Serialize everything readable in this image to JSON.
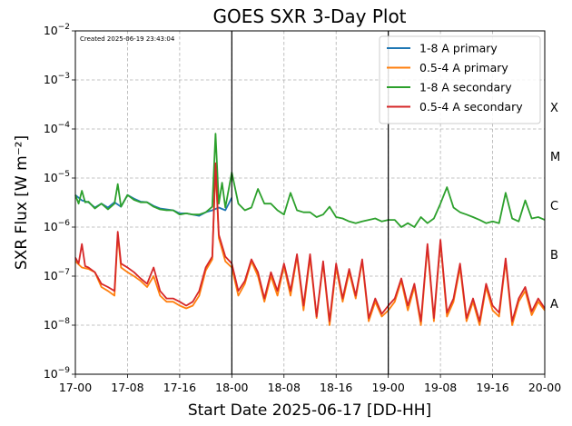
{
  "chart_data": {
    "type": "line",
    "title": "GOES SXR 3-Day Plot",
    "created_text": "Created 2025-06-19 23:43:04",
    "xlabel": "Start Date 2025-06-17 [DD-HH]",
    "ylabel": "SXR Flux [W m⁻²]",
    "y_scale": "log",
    "ylim": [
      1e-09,
      0.01
    ],
    "xlim_hours": [
      0,
      72
    ],
    "grid": true,
    "legend_position": "top-right",
    "x_tick_labels": [
      "17-00",
      "17-08",
      "17-16",
      "18-00",
      "18-08",
      "18-16",
      "19-00",
      "19-08",
      "19-16",
      "20-00"
    ],
    "x_tick_hours": [
      0,
      8,
      16,
      24,
      32,
      40,
      48,
      56,
      64,
      72
    ],
    "y_tick_labels": [
      {
        "base": "10",
        "exp": "−9",
        "value": 1e-09
      },
      {
        "base": "10",
        "exp": "−8",
        "value": 1e-08
      },
      {
        "base": "10",
        "exp": "−7",
        "value": 1e-07
      },
      {
        "base": "10",
        "exp": "−6",
        "value": 1e-06
      },
      {
        "base": "10",
        "exp": "−5",
        "value": 1e-05
      },
      {
        "base": "10",
        "exp": "−4",
        "value": 0.0001
      },
      {
        "base": "10",
        "exp": "−3",
        "value": 0.001
      },
      {
        "base": "10",
        "exp": "−2",
        "value": 0.01
      }
    ],
    "flare_classes": [
      {
        "label": "A",
        "value": 2.8e-08
      },
      {
        "label": "B",
        "value": 2.8e-07
      },
      {
        "label": "C",
        "value": 2.8e-06
      },
      {
        "label": "M",
        "value": 2.8e-05
      },
      {
        "label": "X",
        "value": 0.00028
      }
    ],
    "day_boundaries_hours": [
      24,
      48
    ],
    "series": [
      {
        "name": "  1-8 A primary",
        "color": "#1f77b4",
        "x": [
          0,
          1,
          2,
          3,
          4,
          5,
          6,
          7,
          8,
          9,
          10,
          11,
          12,
          13,
          14,
          15,
          16,
          17,
          18,
          19,
          20,
          21,
          22,
          23,
          24
        ],
        "y": [
          4.5e-06,
          3.5e-06,
          3.2e-06,
          2.5e-06,
          3e-06,
          2.5e-06,
          3.2e-06,
          2.6e-06,
          4.5e-06,
          3.8e-06,
          3.3e-06,
          3.2e-06,
          2.7e-06,
          2.4e-06,
          2.3e-06,
          2.2e-06,
          1.9e-06,
          1.9e-06,
          1.8e-06,
          1.7e-06,
          2e-06,
          2.2e-06,
          2.5e-06,
          2.2e-06,
          4e-06
        ]
      },
      {
        "name": "0.5-4 A primary",
        "color": "#ff7f0e",
        "x": [
          0,
          1,
          2,
          3,
          4,
          5,
          6,
          6.5,
          7,
          8,
          9,
          10,
          11,
          12,
          13,
          14,
          15,
          16,
          17,
          18,
          19,
          20,
          21,
          21.5,
          22,
          23,
          24,
          25,
          26,
          27,
          28,
          29,
          30,
          31,
          32,
          33,
          34,
          35,
          36,
          37,
          38,
          39,
          40,
          41,
          42,
          43,
          44,
          45,
          46,
          47,
          48,
          49,
          50,
          51,
          52,
          53,
          54,
          55,
          56,
          57,
          58,
          59,
          60,
          61,
          62,
          63,
          64,
          65,
          66,
          67,
          68,
          69,
          70,
          71,
          72
        ],
        "y": [
          2e-07,
          1.5e-07,
          1.4e-07,
          1.2e-07,
          6e-08,
          5e-08,
          4e-08,
          7e-07,
          1.5e-07,
          1.2e-07,
          1e-07,
          8e-08,
          6e-08,
          1e-07,
          4e-08,
          3e-08,
          3e-08,
          2.5e-08,
          2.2e-08,
          2.5e-08,
          4e-08,
          1.3e-07,
          2.2e-07,
          1.8e-05,
          6e-07,
          2e-07,
          1.5e-07,
          4e-08,
          7e-08,
          2e-07,
          1e-07,
          3e-08,
          1e-07,
          4e-08,
          1.6e-07,
          4e-08,
          2.5e-07,
          2e-08,
          2.4e-07,
          1.4e-08,
          1.8e-07,
          1e-08,
          1.5e-07,
          3e-08,
          1.2e-07,
          3.5e-08,
          2e-07,
          1.2e-08,
          3e-08,
          1.5e-08,
          2e-08,
          3e-08,
          8e-08,
          2e-08,
          6e-08,
          1e-08,
          4e-07,
          1.2e-08,
          5e-07,
          1.5e-08,
          3e-08,
          1.5e-07,
          1.2e-08,
          3e-08,
          1e-08,
          6e-08,
          2e-08,
          1.5e-08,
          2e-07,
          1e-08,
          3e-08,
          5e-08,
          1.6e-08,
          3e-08,
          2e-08
        ]
      },
      {
        "name": "  1-8 A secondary",
        "color": "#2ca02c",
        "x": [
          0,
          0.5,
          1,
          1.5,
          2,
          3,
          4,
          5,
          6,
          6.5,
          7,
          8,
          9,
          10,
          11,
          12,
          13,
          14,
          15,
          16,
          17,
          18,
          19,
          20,
          21,
          21.5,
          22,
          22.5,
          23,
          24,
          25,
          26,
          27,
          28,
          29,
          30,
          31,
          32,
          33,
          34,
          35,
          36,
          37,
          38,
          39,
          40,
          41,
          42,
          43,
          44,
          45,
          46,
          47,
          48,
          49,
          50,
          51,
          52,
          53,
          54,
          55,
          56,
          57,
          58,
          59,
          60,
          61,
          62,
          63,
          64,
          65,
          66,
          67,
          68,
          69,
          70,
          71,
          72
        ],
        "y": [
          4.5e-06,
          3e-06,
          5.5e-06,
          3.2e-06,
          3.3e-06,
          2.4e-06,
          3e-06,
          2.3e-06,
          3e-06,
          7.5e-06,
          2.6e-06,
          4.5e-06,
          3.6e-06,
          3.2e-06,
          3.2e-06,
          2.6e-06,
          2.3e-06,
          2.2e-06,
          2.2e-06,
          1.8e-06,
          1.9e-06,
          1.8e-06,
          1.8e-06,
          2e-06,
          2.6e-06,
          8e-05,
          3e-06,
          8e-06,
          2.5e-06,
          1.3e-05,
          3e-06,
          2.2e-06,
          2.5e-06,
          6e-06,
          3e-06,
          3e-06,
          2.2e-06,
          1.8e-06,
          5e-06,
          2.2e-06,
          2e-06,
          2e-06,
          1.6e-06,
          1.8e-06,
          2.6e-06,
          1.6e-06,
          1.5e-06,
          1.3e-06,
          1.2e-06,
          1.3e-06,
          1.4e-06,
          1.5e-06,
          1.3e-06,
          1.4e-06,
          1.4e-06,
          1e-06,
          1.2e-06,
          1e-06,
          1.6e-06,
          1.2e-06,
          1.5e-06,
          3e-06,
          6.5e-06,
          2.5e-06,
          2e-06,
          1.8e-06,
          1.6e-06,
          1.4e-06,
          1.2e-06,
          1.3e-06,
          1.2e-06,
          5e-06,
          1.5e-06,
          1.3e-06,
          3.5e-06,
          1.5e-06,
          1.6e-06,
          1.4e-06
        ]
      },
      {
        "name": "0.5-4 A secondary",
        "color": "#d62728",
        "x": [
          0,
          0.5,
          1,
          1.5,
          2,
          3,
          4,
          5,
          6,
          6.5,
          7,
          8,
          9,
          10,
          11,
          12,
          13,
          14,
          15,
          16,
          17,
          18,
          19,
          20,
          21,
          21.5,
          22,
          23,
          24,
          25,
          26,
          27,
          28,
          29,
          30,
          31,
          32,
          33,
          34,
          35,
          36,
          37,
          38,
          39,
          40,
          41,
          42,
          43,
          44,
          45,
          46,
          47,
          48,
          49,
          50,
          51,
          52,
          53,
          54,
          55,
          56,
          57,
          58,
          59,
          60,
          61,
          62,
          63,
          64,
          65,
          66,
          67,
          68,
          69,
          70,
          71,
          72
        ],
        "y": [
          2.4e-07,
          1.8e-07,
          4.5e-07,
          1.6e-07,
          1.5e-07,
          1.2e-07,
          7e-08,
          6e-08,
          5e-08,
          8e-07,
          1.8e-07,
          1.5e-07,
          1.2e-07,
          9e-08,
          7e-08,
          1.5e-07,
          5e-08,
          3.5e-08,
          3.5e-08,
          3e-08,
          2.5e-08,
          3e-08,
          5e-08,
          1.5e-07,
          2.5e-07,
          2e-05,
          7e-07,
          2.5e-07,
          1.8e-07,
          5e-08,
          8e-08,
          2.2e-07,
          1.2e-07,
          3.5e-08,
          1.2e-07,
          5e-08,
          1.8e-07,
          5e-08,
          2.8e-07,
          2.5e-08,
          2.8e-07,
          1.5e-08,
          2e-07,
          1.2e-08,
          1.8e-07,
          3.5e-08,
          1.4e-07,
          4e-08,
          2.2e-07,
          1.4e-08,
          3.5e-08,
          1.7e-08,
          2.5e-08,
          3.5e-08,
          9e-08,
          2.5e-08,
          7e-08,
          1.2e-08,
          4.5e-07,
          1.4e-08,
          5.5e-07,
          1.8e-08,
          3.5e-08,
          1.8e-07,
          1.4e-08,
          3.5e-08,
          1.2e-08,
          7e-08,
          2.5e-08,
          1.8e-08,
          2.3e-07,
          1.2e-08,
          3.5e-08,
          6e-08,
          1.9e-08,
          3.5e-08,
          2.2e-08
        ]
      }
    ]
  }
}
